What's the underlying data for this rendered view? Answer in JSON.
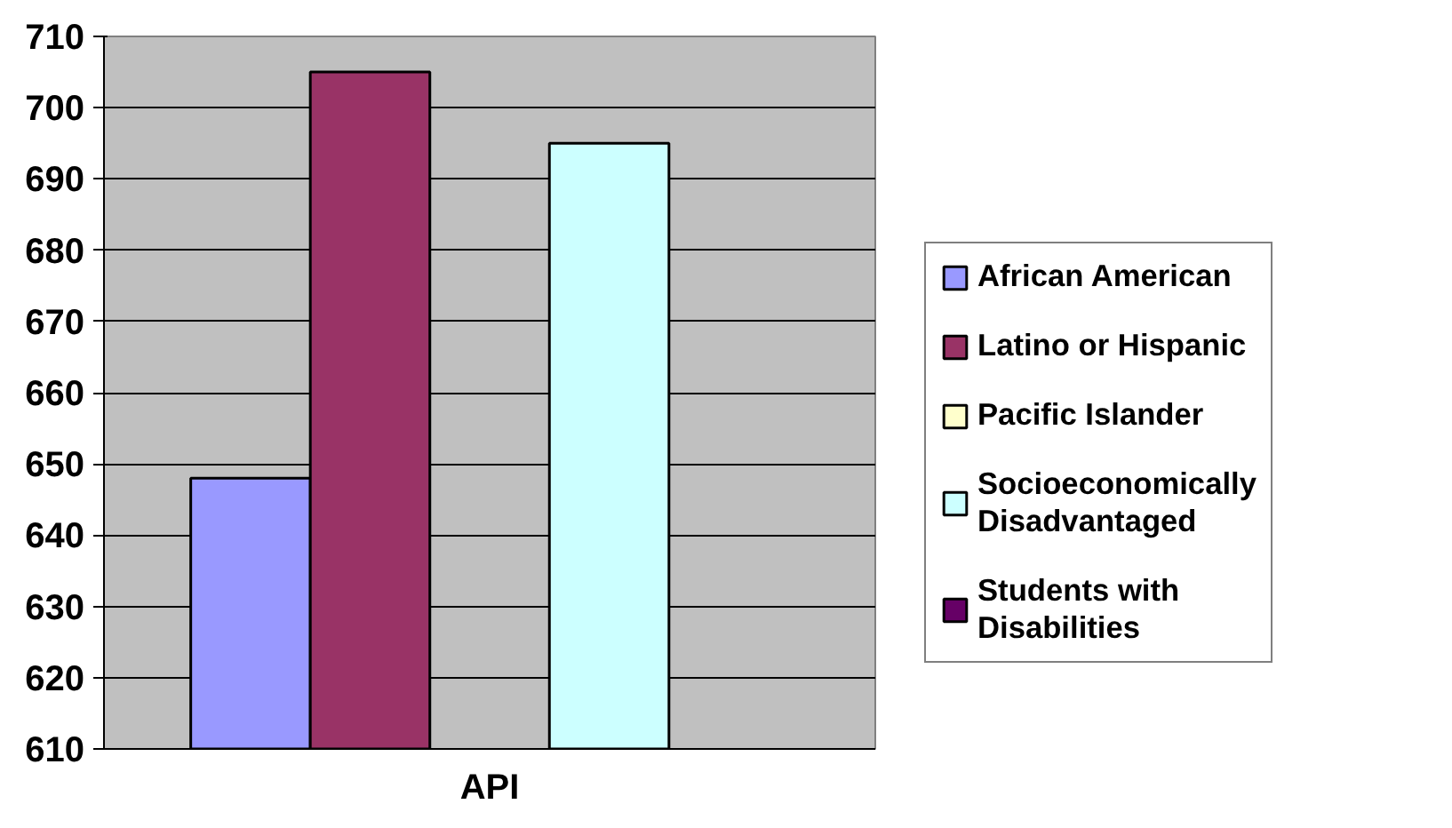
{
  "chart_data": {
    "type": "bar",
    "categories": [
      "API"
    ],
    "series": [
      {
        "name": "African American",
        "color": "#9999ff",
        "values": [
          648
        ]
      },
      {
        "name": "Latino or Hispanic",
        "color": "#993366",
        "values": [
          705
        ]
      },
      {
        "name": "Pacific Islander",
        "color": "#ffffcc",
        "values": [
          null
        ]
      },
      {
        "name": "Socioeconomically Disadvantaged",
        "color": "#ccffff",
        "values": [
          695
        ]
      },
      {
        "name": "Students with Disabilities",
        "color": "#660066",
        "values": [
          null
        ]
      }
    ],
    "ylim": [
      610,
      710
    ],
    "yticks": [
      610,
      620,
      630,
      640,
      650,
      660,
      670,
      680,
      690,
      700,
      710
    ],
    "grid": "y",
    "legend": "right"
  }
}
